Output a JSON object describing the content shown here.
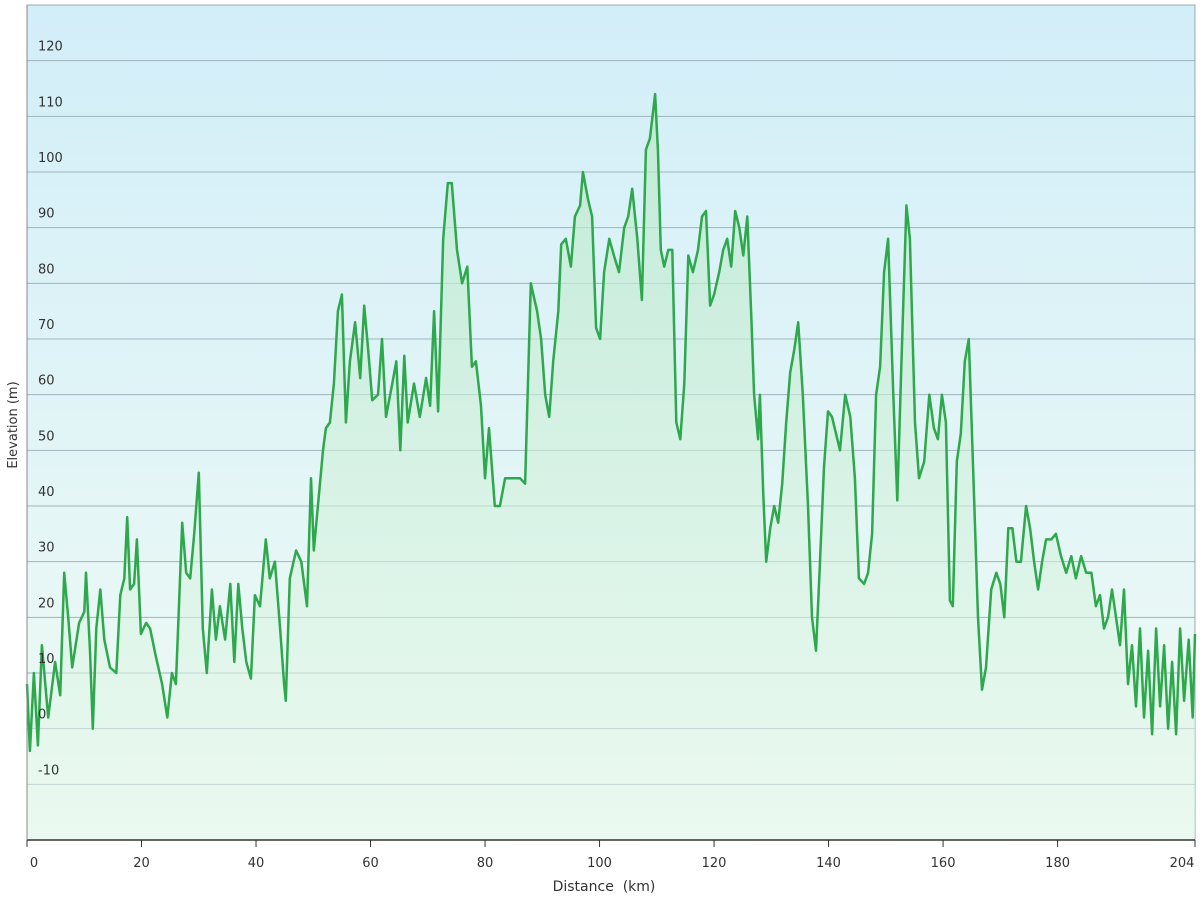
{
  "chart_data": {
    "type": "line",
    "x_label": "Distance  (km)",
    "y_label": "Elevation (m)",
    "x": [
      0,
      0.5,
      1.2,
      1.9,
      2.6,
      3.7,
      4.9,
      5.8,
      6.5,
      7.2,
      7.9,
      9.1,
      10.0,
      10.3,
      11.0,
      11.5,
      12.1,
      12.8,
      13.5,
      14.5,
      15.6,
      16.3,
      17.0,
      17.5,
      18.0,
      18.7,
      19.2,
      19.9,
      20.8,
      21.5,
      22.5,
      23.6,
      24.5,
      25.3,
      26.0,
      27.1,
      27.8,
      28.5,
      29.2,
      30.0,
      30.7,
      31.4,
      32.3,
      33.0,
      33.7,
      34.6,
      35.5,
      36.2,
      36.9,
      37.6,
      38.3,
      39.1,
      39.8,
      40.7,
      41.7,
      42.4,
      43.3,
      44.2,
      44.9,
      45.2,
      45.9,
      47.0,
      47.9,
      48.9,
      49.6,
      50.1,
      50.8,
      51.7,
      52.2,
      52.9,
      53.6,
      54.3,
      55.0,
      55.7,
      56.4,
      57.3,
      58.2,
      58.9,
      59.6,
      60.3,
      61.3,
      62.0,
      62.7,
      63.8,
      64.5,
      65.2,
      65.9,
      66.5,
      67.6,
      68.6,
      69.7,
      70.4,
      71.1,
      71.8,
      72.7,
      73.5,
      74.2,
      75.1,
      76.0,
      76.9,
      77.7,
      78.4,
      79.3,
      80.0,
      80.7,
      81.7,
      82.6,
      83.5,
      84.4,
      86.1,
      87.0,
      88.0,
      89.1,
      89.8,
      90.5,
      91.2,
      91.9,
      92.8,
      93.3,
      94.1,
      95.0,
      95.7,
      96.6,
      97.1,
      98.0,
      98.7,
      99.4,
      100.1,
      100.8,
      101.7,
      102.5,
      103.4,
      104.3,
      105.0,
      105.7,
      106.6,
      107.4,
      108.1,
      108.8,
      109.7,
      110.2,
      110.7,
      111.3,
      112.0,
      112.7,
      113.4,
      114.1,
      114.8,
      115.5,
      116.3,
      117.2,
      117.9,
      118.6,
      119.3,
      120.0,
      120.9,
      121.6,
      122.3,
      123.0,
      123.7,
      124.4,
      125.1,
      125.8,
      126.5,
      127.0,
      127.7,
      128.0,
      128.6,
      129.1,
      129.8,
      130.5,
      131.2,
      131.9,
      132.6,
      133.3,
      134.0,
      134.7,
      135.5,
      136.4,
      137.1,
      137.8,
      138.5,
      139.2,
      139.9,
      140.6,
      141.3,
      142.0,
      142.9,
      143.8,
      144.6,
      145.3,
      146.2,
      146.9,
      147.6,
      148.3,
      149.0,
      149.7,
      150.4,
      151.3,
      152.0,
      152.7,
      153.6,
      154.2,
      155.1,
      155.8,
      156.7,
      157.6,
      158.4,
      159.1,
      159.8,
      160.5,
      161.2,
      161.7,
      162.4,
      163.1,
      163.8,
      164.5,
      165.2,
      166.1,
      166.8,
      167.5,
      168.4,
      169.3,
      170.0,
      170.7,
      171.4,
      172.1,
      172.8,
      173.6,
      174.5,
      175.2,
      175.9,
      176.6,
      177.3,
      178.0,
      178.9,
      179.7,
      180.6,
      181.5,
      182.4,
      183.2,
      184.1,
      185.0,
      185.9,
      186.7,
      187.4,
      188.1,
      188.8,
      189.5,
      190.2,
      190.9,
      191.6,
      192.3,
      193.0,
      193.7,
      194.4,
      195.1,
      195.8,
      196.5,
      197.2,
      197.9,
      198.6,
      199.3,
      200.0,
      200.7,
      201.4,
      202.1,
      202.9,
      203.6,
      204.0
    ],
    "values": [
      8,
      -4,
      10,
      -3,
      15,
      2,
      12,
      6,
      28,
      20,
      11,
      19,
      21,
      28,
      14,
      0,
      18,
      25,
      16,
      11,
      10,
      24,
      27,
      38,
      25,
      26,
      34,
      17,
      19,
      18,
      13,
      8,
      2,
      10,
      8,
      37,
      28,
      27,
      35,
      46,
      18,
      10,
      25,
      16,
      22,
      16,
      26,
      12,
      26,
      18,
      12,
      9,
      24,
      22,
      34,
      27,
      30,
      18,
      8,
      5,
      27,
      32,
      30,
      22,
      45,
      32,
      40,
      50,
      54,
      55,
      62,
      75,
      78,
      55,
      66,
      73,
      63,
      76,
      68,
      59,
      60,
      70,
      56,
      62,
      66,
      50,
      67,
      55,
      62,
      56,
      63,
      58,
      75,
      57,
      88,
      98,
      98,
      86,
      80,
      83,
      65,
      66,
      58,
      45,
      54,
      40,
      40,
      45,
      45,
      45,
      44,
      80,
      75,
      70,
      60,
      56,
      66,
      75,
      87,
      88,
      83,
      92,
      94,
      100,
      95,
      92,
      72,
      70,
      82,
      88,
      85,
      82,
      90,
      92,
      97,
      88,
      77,
      104,
      106,
      114,
      104,
      86,
      83,
      86,
      86,
      55,
      52,
      62,
      85,
      82,
      86,
      92,
      93,
      76,
      78,
      82,
      86,
      88,
      83,
      93,
      90,
      85,
      92,
      74,
      60,
      52,
      60,
      42,
      30,
      36,
      40,
      37,
      44,
      55,
      64,
      68,
      73,
      60,
      40,
      20,
      14,
      30,
      47,
      57,
      56,
      53,
      50,
      60,
      56,
      45,
      27,
      26,
      28,
      35,
      60,
      65,
      82,
      88,
      60,
      41,
      65,
      94,
      88,
      55,
      45,
      48,
      60,
      54,
      52,
      60,
      55,
      23,
      22,
      48,
      53,
      66,
      70,
      48,
      20,
      7,
      11,
      25,
      28,
      26,
      20,
      36,
      36,
      30,
      30,
      40,
      36,
      30,
      25,
      30,
      34,
      34,
      35,
      31,
      28,
      31,
      27,
      31,
      28,
      28,
      22,
      24,
      18,
      20,
      25,
      20,
      15,
      25,
      8,
      15,
      4,
      18,
      2,
      14,
      -1,
      18,
      4,
      15,
      0,
      12,
      -1,
      18,
      5,
      16,
      2,
      17
    ],
    "color": "#2ea84c",
    "xlim": [
      0,
      204
    ],
    "xticks": [
      0,
      20,
      40,
      60,
      80,
      100,
      120,
      140,
      160,
      180,
      204
    ],
    "ylim": [
      -20,
      130
    ],
    "yticks": [
      -10,
      0,
      10,
      20,
      30,
      40,
      50,
      60,
      70,
      80,
      90,
      100,
      110,
      120
    ],
    "grid": true
  }
}
